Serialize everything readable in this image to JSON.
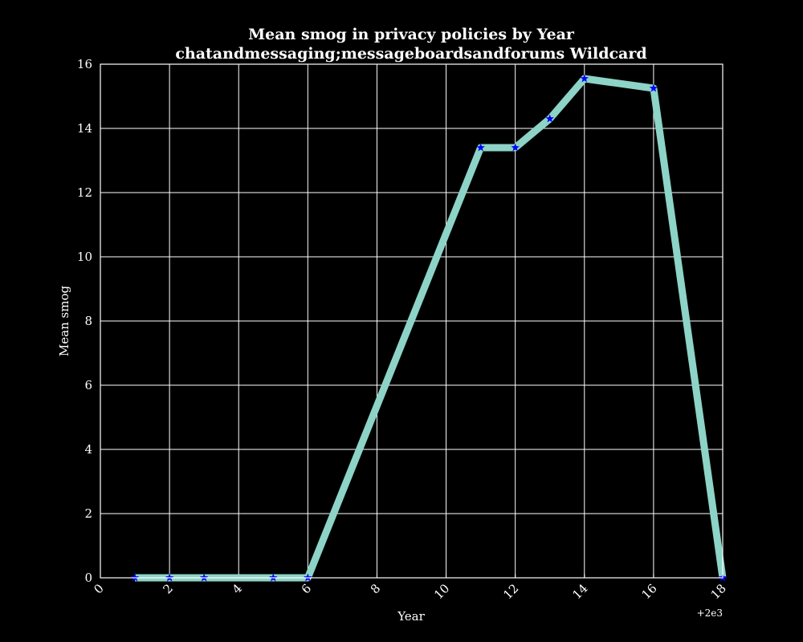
{
  "chart_data": {
    "type": "line",
    "title_line1": "Mean smog in privacy policies by Year",
    "title_line2": "chatandmessaging;messageboardsandforums Wildcard",
    "xlabel": "Year",
    "ylabel": "Mean smog",
    "x_offset_label": "+2e3",
    "xlim": [
      0,
      18
    ],
    "ylim": [
      0,
      16
    ],
    "x_ticks": [
      0,
      2,
      4,
      6,
      8,
      10,
      12,
      14,
      16,
      18
    ],
    "y_ticks": [
      0,
      2,
      4,
      6,
      8,
      10,
      12,
      14,
      16
    ],
    "grid": true,
    "series": [
      {
        "x": [
          1,
          2,
          3,
          5,
          6,
          11,
          12,
          13,
          14,
          16,
          18
        ],
        "y": [
          0,
          0,
          0,
          0,
          0,
          13.4,
          13.4,
          14.3,
          15.55,
          15.25,
          0
        ],
        "line_color": "#8dd3c7",
        "marker_color": "#0000ff",
        "marker": "star"
      }
    ]
  }
}
